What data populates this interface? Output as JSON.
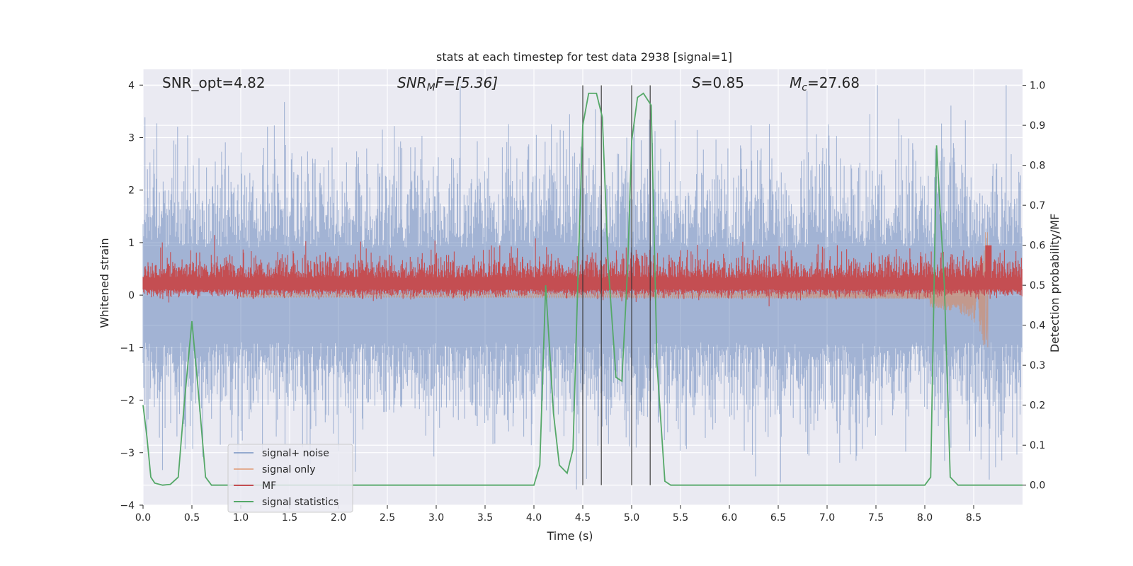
{
  "chart_data": {
    "type": "line",
    "title": "stats at each timestep for test data 2938 [signal=1]",
    "xlabel": "Time (s)",
    "ylabel_left": "Whitened strain",
    "ylabel_right": "Detection probability/MF",
    "xlim": [
      0,
      9
    ],
    "ylim_left": [
      -4.0,
      4.3
    ],
    "ylim_right": [
      -0.05,
      1.04
    ],
    "x_ticks": [
      "0.0",
      "0.5",
      "1.0",
      "1.5",
      "2.0",
      "2.5",
      "3.0",
      "3.5",
      "4.0",
      "4.5",
      "5.0",
      "5.5",
      "6.0",
      "6.5",
      "7.0",
      "7.5",
      "8.0",
      "8.5"
    ],
    "x_tick_values": [
      0,
      0.5,
      1,
      1.5,
      2,
      2.5,
      3,
      3.5,
      4,
      4.5,
      5,
      5.5,
      6,
      6.5,
      7,
      7.5,
      8,
      8.5
    ],
    "y_left_ticks": [
      "4",
      "3",
      "2",
      "1",
      "0",
      "−1",
      "−2",
      "−3",
      "−4"
    ],
    "y_left_tick_values": [
      4,
      3,
      2,
      1,
      0,
      -1,
      -2,
      -3,
      -4
    ],
    "y_right_ticks": [
      "1.0",
      "0.9",
      "0.8",
      "0.7",
      "0.6",
      "0.5",
      "0.4",
      "0.3",
      "0.2",
      "0.1",
      "0.0"
    ],
    "y_right_tick_values": [
      1.0,
      0.9,
      0.8,
      0.7,
      0.6,
      0.5,
      0.4,
      0.3,
      0.2,
      0.1,
      0.0
    ],
    "grid": true,
    "legend_position": "lower-left",
    "annotations": {
      "snr_opt": "SNR_opt=4.82",
      "snr_mf": "SNR",
      "snr_mf_sub": "M",
      "snr_mf_rest": "F=[5.36]",
      "s": "S",
      "s_rest": "=0.85",
      "mc": "M",
      "mc_sub": "c",
      "mc_rest": "=27.68"
    },
    "series": [
      {
        "name": "signal+ noise",
        "color": "#4c72b0",
        "style": "noise band, amplitude ~ ±1 to ±3.6"
      },
      {
        "name": "signal only",
        "color": "#dd8452",
        "style": "chirp peaking near 8.65 s"
      },
      {
        "name": "MF",
        "color": "#c44e52",
        "style": "band between 0 and ~0.5"
      },
      {
        "name": "signal statistics",
        "color": "#55a868",
        "x": [
          0.0,
          0.04,
          0.08,
          0.12,
          0.2,
          0.28,
          0.36,
          0.42,
          0.5,
          0.56,
          0.64,
          0.7,
          1.0,
          2.0,
          3.0,
          4.0,
          4.06,
          4.12,
          4.2,
          4.26,
          4.34,
          4.4,
          4.46,
          4.5,
          4.56,
          4.64,
          4.7,
          4.76,
          4.84,
          4.9,
          4.96,
          5.0,
          5.06,
          5.12,
          5.2,
          5.26,
          5.34,
          5.4,
          5.5,
          6.0,
          7.0,
          8.0,
          8.06,
          8.12,
          8.2,
          8.26,
          8.34,
          8.4,
          8.5,
          9.0
        ],
        "y": [
          0.2,
          0.12,
          0.02,
          0.005,
          0.0,
          0.002,
          0.02,
          0.2,
          0.41,
          0.25,
          0.02,
          0.0,
          0.0,
          0.0,
          0.0,
          0.0,
          0.05,
          0.5,
          0.18,
          0.05,
          0.03,
          0.09,
          0.6,
          0.9,
          0.98,
          0.98,
          0.92,
          0.55,
          0.27,
          0.26,
          0.55,
          0.86,
          0.97,
          0.98,
          0.95,
          0.3,
          0.01,
          0.0,
          0.0,
          0.0,
          0.0,
          0.0,
          0.02,
          0.85,
          0.5,
          0.02,
          0.0,
          0.0,
          0.0,
          0.0
        ]
      }
    ],
    "vlines_x": [
      4.5,
      4.69,
      5.0,
      5.19
    ],
    "colors": {
      "axes_bg": "#eaeaf2",
      "grid": "#ffffff",
      "noise": "#4c72b0",
      "signal": "#dd8452",
      "mf": "#c44e52",
      "stats": "#55a868",
      "vline": "#333333"
    }
  }
}
